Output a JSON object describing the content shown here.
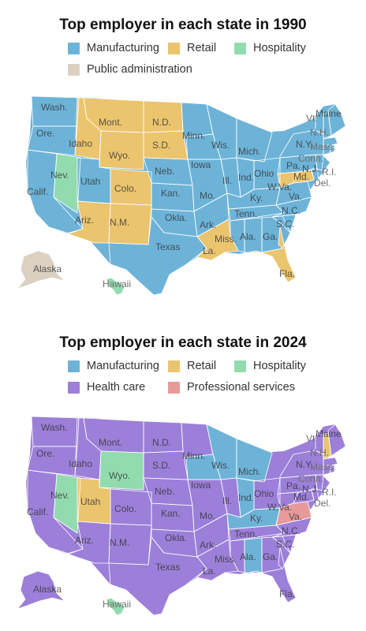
{
  "colors": {
    "Manufacturing": "#6db3d8",
    "Retail": "#ebc46e",
    "Hospitality": "#92dbaf",
    "Public administration": "#dcd1c1",
    "Health care": "#9c7fd9",
    "Professional services": "#e69a9a"
  },
  "maps": [
    {
      "title": "Top employer in each state in 1990",
      "legend": [
        {
          "label": "Manufacturing",
          "color": "#6db3d8"
        },
        {
          "label": "Retail",
          "color": "#ebc46e"
        },
        {
          "label": "Hospitality",
          "color": "#92dbaf"
        },
        {
          "label": "Public administration",
          "color": "#dcd1c1"
        }
      ],
      "base_category": "Manufacturing",
      "states": {
        "Wash.": "Manufacturing",
        "Ore.": "Manufacturing",
        "Calif.": "Manufacturing",
        "Nev.": "Hospitality",
        "Idaho": "Retail",
        "Mont.": "Retail",
        "Wyo.": "Retail",
        "Utah": "Manufacturing",
        "Colo.": "Retail",
        "Ariz.": "Retail",
        "N.M.": "Retail",
        "N.D.": "Retail",
        "S.D.": "Retail",
        "Neb.": "Manufacturing",
        "Kan.": "Manufacturing",
        "Okla.": "Manufacturing",
        "Texas": "Manufacturing",
        "Minn.": "Manufacturing",
        "Iowa": "Manufacturing",
        "Mo.": "Manufacturing",
        "Ark.": "Manufacturing",
        "La.": "Retail",
        "Wis.": "Manufacturing",
        "Ill.": "Manufacturing",
        "Mich.": "Manufacturing",
        "Ind.": "Manufacturing",
        "Ohio": "Manufacturing",
        "Ky.": "Manufacturing",
        "Tenn.": "Manufacturing",
        "Miss.": "Manufacturing",
        "Ala.": "Manufacturing",
        "Ga.": "Manufacturing",
        "Fla.": "Retail",
        "S.C.": "Manufacturing",
        "N.C.": "Manufacturing",
        "Va.": "Manufacturing",
        "W.Va.": "Retail",
        "Md.": "Retail",
        "Del.": "Manufacturing",
        "Pa.": "Manufacturing",
        "N.J.": "Manufacturing",
        "N.Y.": "Manufacturing",
        "Conn.": "Manufacturing",
        "R.I.": "Manufacturing",
        "Mass.": "Manufacturing",
        "Vt.": "Manufacturing",
        "N.H.": "Manufacturing",
        "Maine": "Manufacturing",
        "Alaska": "Public administration",
        "Hawaii": "Hospitality"
      }
    },
    {
      "title": "Top employer in each state in 2024",
      "legend": [
        {
          "label": "Manufacturing",
          "color": "#6db3d8"
        },
        {
          "label": "Retail",
          "color": "#ebc46e"
        },
        {
          "label": "Hospitality",
          "color": "#92dbaf"
        },
        {
          "label": "Health care",
          "color": "#9c7fd9"
        },
        {
          "label": "Professional services",
          "color": "#e69a9a"
        }
      ],
      "base_category": "Health care",
      "states": {
        "Wash.": "Health care",
        "Ore.": "Health care",
        "Calif.": "Health care",
        "Nev.": "Hospitality",
        "Idaho": "Health care",
        "Mont.": "Health care",
        "Wyo.": "Hospitality",
        "Utah": "Retail",
        "Colo.": "Health care",
        "Ariz.": "Health care",
        "N.M.": "Health care",
        "N.D.": "Health care",
        "S.D.": "Health care",
        "Neb.": "Health care",
        "Kan.": "Health care",
        "Okla.": "Health care",
        "Texas": "Health care",
        "Minn.": "Health care",
        "Iowa": "Manufacturing",
        "Mo.": "Health care",
        "Ark.": "Health care",
        "La.": "Health care",
        "Wis.": "Manufacturing",
        "Ill.": "Health care",
        "Mich.": "Manufacturing",
        "Ind.": "Manufacturing",
        "Ohio": "Health care",
        "Ky.": "Manufacturing",
        "Tenn.": "Health care",
        "Miss.": "Health care",
        "Ala.": "Manufacturing",
        "Ga.": "Health care",
        "Fla.": "Health care",
        "S.C.": "Health care",
        "N.C.": "Health care",
        "Va.": "Professional services",
        "W.Va.": "Health care",
        "Md.": "Health care",
        "Del.": "Health care",
        "Pa.": "Health care",
        "N.J.": "Health care",
        "N.Y.": "Health care",
        "Conn.": "Health care",
        "R.I.": "Health care",
        "Mass.": "Health care",
        "Vt.": "Health care",
        "N.H.": "Retail",
        "Maine": "Health care",
        "Alaska": "Health care",
        "Hawaii": "Hospitality"
      }
    }
  ]
}
